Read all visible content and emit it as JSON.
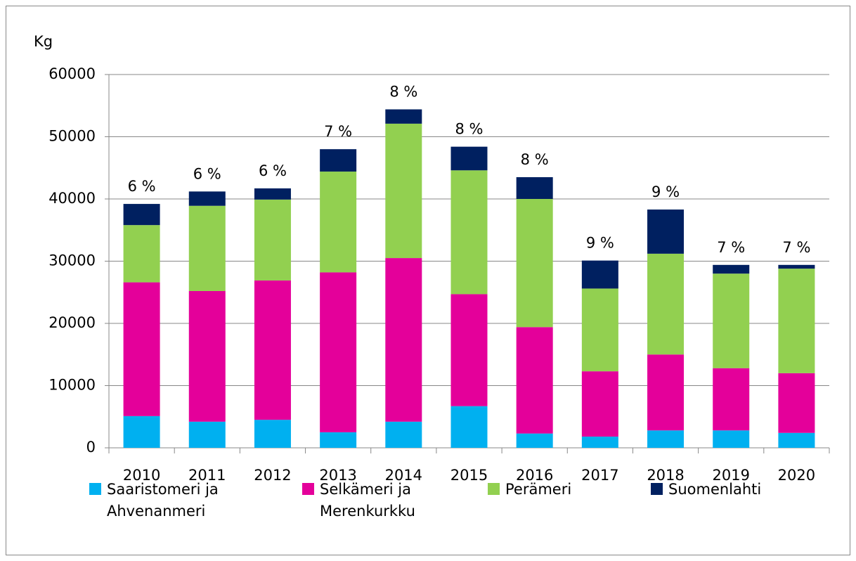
{
  "chart_data": {
    "type": "stacked_bar",
    "y_label": "Kg",
    "categories": [
      "2010",
      "2011",
      "2012",
      "2013",
      "2014",
      "2015",
      "2016",
      "2017",
      "2018",
      "2019",
      "2020"
    ],
    "series": [
      {
        "name": "Saaristomeri ja Ahvenanmeri",
        "color": "#00b0f0",
        "values": [
          5100,
          4200,
          4500,
          2500,
          4200,
          6700,
          2300,
          1800,
          2800,
          2800,
          2400
        ]
      },
      {
        "name": "Selkämeri ja Merenkurkku",
        "color": "#e4009a",
        "values": [
          21500,
          21000,
          22400,
          25700,
          26300,
          18000,
          17100,
          10500,
          12200,
          10000,
          9600
        ]
      },
      {
        "name": "Perämeri",
        "color": "#92d050",
        "values": [
          9200,
          13700,
          13000,
          16200,
          21600,
          19900,
          20600,
          13300,
          16200,
          15200,
          16800
        ]
      },
      {
        "name": "Suomenlahti",
        "color": "#002060",
        "values": [
          3400,
          2300,
          1800,
          3600,
          2300,
          3800,
          3500,
          4500,
          7100,
          1400,
          600
        ]
      }
    ],
    "bar_labels": [
      "6 %",
      "6 %",
      "6 %",
      "7 %",
      "8 %",
      "8 %",
      "8 %",
      "9 %",
      "9 %",
      "7 %",
      "7 %"
    ],
    "ylim": [
      0,
      60000
    ],
    "yticks": [
      0,
      10000,
      20000,
      30000,
      40000,
      50000,
      60000
    ],
    "grid": true,
    "legend": "bottom"
  }
}
